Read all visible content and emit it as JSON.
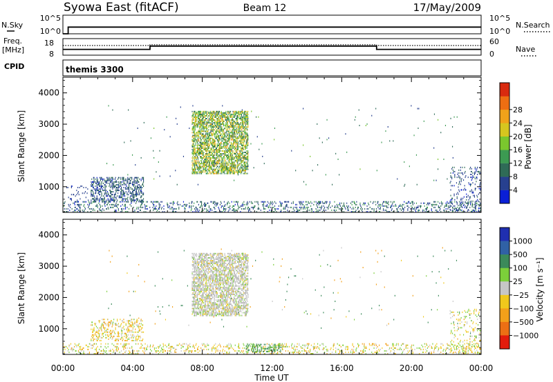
{
  "header": {
    "title": "Syowa East (fitACF)",
    "beam": "Beam 12",
    "date": "17/May/2009"
  },
  "colors": {
    "power_scale": [
      "#0a1fd6",
      "#27408f",
      "#2f6b57",
      "#3c9a52",
      "#7bc72e",
      "#d6c61f",
      "#f0a21a",
      "#ee6e12",
      "#d92a0f"
    ],
    "velocity_scale": [
      "#1f2fb0",
      "#3061a5",
      "#3b8a5a",
      "#7ccf3a",
      "#c6c6c6",
      "#f0c81c",
      "#f2a01a",
      "#ec6f14",
      "#e21c0c"
    ],
    "line": "#000000",
    "ground_scatter": "#b8b8b8"
  },
  "top_panels": {
    "nsky": {
      "label": "N.Sky",
      "right_label": "N.Search",
      "left_ticks": [
        "10^5",
        "10^0"
      ],
      "right_ticks": [
        "10^5",
        "10^0"
      ]
    },
    "freq": {
      "label_line1": "Freq.",
      "label_line2": "[MHz]",
      "right_label": "Nave",
      "left_ticks": [
        "18",
        "8"
      ],
      "right_ticks": [
        "60",
        "0"
      ]
    },
    "cpid": {
      "label": "CPID",
      "value": "themis 3300"
    }
  },
  "chart_data": [
    {
      "type": "line",
      "name": "sky-noise",
      "ylabel": "N.Sky",
      "x_hours": [
        0.0,
        0.3,
        0.3,
        24.0
      ],
      "y_log10": [
        0,
        0,
        1.8,
        1.8
      ],
      "ylim_log10": [
        0,
        5
      ],
      "right_axis": {
        "label": "N.Search",
        "ylim_log10": [
          0,
          5
        ]
      }
    },
    {
      "type": "line",
      "name": "frequency",
      "ylabel": "Freq. [MHz]",
      "series": [
        {
          "name": "Freq.",
          "x_hours": [
            0.0,
            5.0,
            5.0,
            18.0,
            18.0,
            24.0
          ],
          "y": [
            11.5,
            11.5,
            13.5,
            13.5,
            11.5,
            11.5
          ],
          "style": "solid"
        },
        {
          "name": "Nave",
          "x_hours": [
            0.0,
            5.0,
            5.0,
            18.0,
            18.0,
            24.0
          ],
          "y_right": [
            35,
            35,
            38,
            38,
            35,
            35
          ],
          "style": "dotted"
        }
      ],
      "ylim": [
        8,
        18
      ],
      "right_axis": {
        "label": "Nave",
        "ylim": [
          0,
          60
        ]
      }
    },
    {
      "type": "heatmap",
      "name": "power",
      "ylabel": "Slant Range [km]",
      "ylim": [
        180,
        4500
      ],
      "yticks": [
        1000,
        2000,
        3000,
        4000
      ],
      "xlim_hours": [
        0,
        24
      ],
      "xticks": [
        "00:00",
        "04:00",
        "08:00",
        "12:00",
        "16:00",
        "20:00",
        "00:00"
      ],
      "colorbar": {
        "label": "Power [dB]",
        "levels": [
          0,
          4,
          8,
          12,
          16,
          20,
          24,
          28,
          32
        ],
        "ticks": [
          "4",
          "8",
          "12",
          "16",
          "20",
          "24",
          "28"
        ]
      },
      "regions": [
        {
          "t": [
            7.4,
            10.6
          ],
          "r": [
            1400,
            3400
          ],
          "v": [
            8,
            26
          ],
          "density": 0.55
        },
        {
          "t": [
            1.6,
            4.6
          ],
          "r": [
            500,
            1300
          ],
          "v": [
            3,
            12
          ],
          "density": 0.35
        },
        {
          "t": [
            0.0,
            24.0
          ],
          "r": [
            180,
            520
          ],
          "v": [
            3,
            14
          ],
          "density": 0.18
        },
        {
          "t": [
            0.2,
            1.5
          ],
          "r": [
            500,
            1000
          ],
          "v": [
            3,
            8
          ],
          "density": 0.08
        },
        {
          "t": [
            22.2,
            24.0
          ],
          "r": [
            200,
            1600
          ],
          "v": [
            3,
            10
          ],
          "density": 0.12
        },
        {
          "t": [
            2.5,
            23.0
          ],
          "r": [
            1000,
            3600
          ],
          "v": [
            4,
            18
          ],
          "density": 0.004
        }
      ]
    },
    {
      "type": "heatmap",
      "name": "velocity",
      "ylabel": "Slant Range [km]",
      "ylim": [
        180,
        4500
      ],
      "yticks": [
        1000,
        2000,
        3000,
        4000
      ],
      "xlim_hours": [
        0,
        24
      ],
      "xticks": [
        "00:00",
        "04:00",
        "08:00",
        "12:00",
        "16:00",
        "20:00",
        "00:00"
      ],
      "xlabel": "Time UT",
      "colorbar": {
        "label": "Velocity [m s⁻¹]",
        "levels": [
          1500,
          1000,
          500,
          100,
          25,
          -25,
          -100,
          -500,
          -1000,
          -1500
        ],
        "ticks": [
          "1000",
          "500",
          "100",
          "25",
          "−25",
          "−100",
          "−500",
          "−1000"
        ]
      },
      "regions": [
        {
          "t": [
            7.4,
            10.6
          ],
          "r": [
            1400,
            3400
          ],
          "v": [
            -60,
            60
          ],
          "density": 0.5,
          "ground": true
        },
        {
          "t": [
            1.6,
            4.6
          ],
          "r": [
            600,
            1300
          ],
          "v": [
            -150,
            50
          ],
          "density": 0.25
        },
        {
          "t": [
            0.0,
            24.0
          ],
          "r": [
            180,
            520
          ],
          "v": [
            -150,
            100
          ],
          "density": 0.16
        },
        {
          "t": [
            10.5,
            12.5
          ],
          "r": [
            250,
            500
          ],
          "v": [
            50,
            200
          ],
          "density": 0.3
        },
        {
          "t": [
            22.2,
            24.0
          ],
          "r": [
            200,
            1600
          ],
          "v": [
            -120,
            120
          ],
          "density": 0.1
        },
        {
          "t": [
            2.5,
            23.0
          ],
          "r": [
            1000,
            3600
          ],
          "v": [
            -400,
            400
          ],
          "density": 0.004
        }
      ]
    }
  ]
}
